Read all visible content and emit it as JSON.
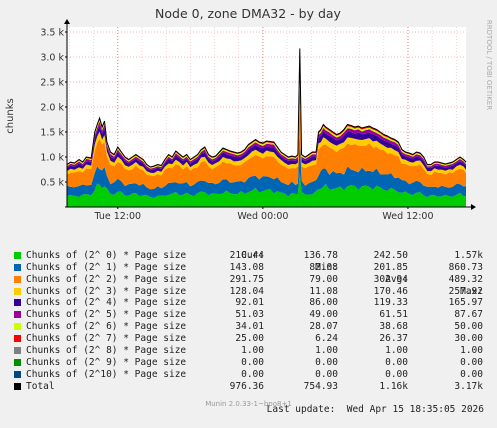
{
  "chart_data": {
    "type": "area",
    "title": "Node 0, zone DMA32 - by day",
    "ylabel": "chunks",
    "side_label": "RRDTOOL / TOBI OETIKER",
    "ylim": [
      0,
      3600
    ],
    "yticks": [
      {
        "value": 500,
        "label": "0.5 k"
      },
      {
        "value": 1000,
        "label": "1.0 k"
      },
      {
        "value": 1500,
        "label": "1.5 k"
      },
      {
        "value": 2000,
        "label": "2.0 k"
      },
      {
        "value": 2500,
        "label": "2.5 k"
      },
      {
        "value": 3000,
        "label": "3.0 k"
      },
      {
        "value": 3500,
        "label": "3.5 k"
      }
    ],
    "xticks": [
      {
        "value": 4.2,
        "label": "Tue 12:00"
      },
      {
        "value": 16.2,
        "label": "Wed 00:00"
      },
      {
        "value": 28.2,
        "label": "Wed 12:00"
      }
    ],
    "xlim": [
      0,
      33
    ],
    "grid": true,
    "total_profile": [
      [
        0.0,
        850
      ],
      [
        0.3,
        900
      ],
      [
        0.6,
        880
      ],
      [
        1.0,
        950
      ],
      [
        1.3,
        900
      ],
      [
        1.6,
        1000
      ],
      [
        2.0,
        980
      ],
      [
        2.3,
        1500
      ],
      [
        2.5,
        1650
      ],
      [
        2.7,
        1780
      ],
      [
        2.9,
        1600
      ],
      [
        3.1,
        1720
      ],
      [
        3.3,
        1300
      ],
      [
        3.6,
        1100
      ],
      [
        3.9,
        1050
      ],
      [
        4.2,
        1200
      ],
      [
        4.5,
        1100
      ],
      [
        4.8,
        1000
      ],
      [
        5.1,
        950
      ],
      [
        5.4,
        1000
      ],
      [
        5.7,
        1050
      ],
      [
        6.0,
        1000
      ],
      [
        6.3,
        950
      ],
      [
        6.6,
        850
      ],
      [
        6.9,
        800
      ],
      [
        7.2,
        820
      ],
      [
        7.5,
        850
      ],
      [
        7.8,
        830
      ],
      [
        8.1,
        950
      ],
      [
        8.4,
        1050
      ],
      [
        8.7,
        1000
      ],
      [
        9.0,
        1120
      ],
      [
        9.3,
        1060
      ],
      [
        9.6,
        1000
      ],
      [
        9.9,
        1050
      ],
      [
        10.2,
        950
      ],
      [
        10.5,
        1000
      ],
      [
        10.8,
        1050
      ],
      [
        11.1,
        1150
      ],
      [
        11.4,
        1200
      ],
      [
        11.7,
        1050
      ],
      [
        12.0,
        1000
      ],
      [
        12.3,
        1020
      ],
      [
        12.6,
        1100
      ],
      [
        12.9,
        1180
      ],
      [
        13.2,
        1150
      ],
      [
        13.5,
        1120
      ],
      [
        13.8,
        1100
      ],
      [
        14.1,
        1080
      ],
      [
        14.4,
        1100
      ],
      [
        14.7,
        1150
      ],
      [
        15.0,
        1250
      ],
      [
        15.3,
        1300
      ],
      [
        15.6,
        1350
      ],
      [
        15.9,
        1300
      ],
      [
        16.2,
        1280
      ],
      [
        16.5,
        1320
      ],
      [
        16.8,
        1310
      ],
      [
        17.1,
        1300
      ],
      [
        17.4,
        1200
      ],
      [
        17.7,
        1100
      ],
      [
        18.0,
        1050
      ],
      [
        18.3,
        1000
      ],
      [
        18.6,
        1020
      ],
      [
        18.9,
        1000
      ],
      [
        19.1,
        1050
      ],
      [
        19.25,
        3170
      ],
      [
        19.4,
        1050
      ],
      [
        19.7,
        1000
      ],
      [
        20.0,
        1050
      ],
      [
        20.3,
        1100
      ],
      [
        20.6,
        1100
      ],
      [
        20.8,
        1500
      ],
      [
        21.0,
        1550
      ],
      [
        21.2,
        1650
      ],
      [
        21.4,
        1600
      ],
      [
        21.7,
        1550
      ],
      [
        22.0,
        1500
      ],
      [
        22.3,
        1450
      ],
      [
        22.6,
        1480
      ],
      [
        22.9,
        1550
      ],
      [
        23.2,
        1650
      ],
      [
        23.5,
        1630
      ],
      [
        23.8,
        1600
      ],
      [
        24.1,
        1620
      ],
      [
        24.4,
        1580
      ],
      [
        24.7,
        1600
      ],
      [
        25.0,
        1620
      ],
      [
        25.3,
        1580
      ],
      [
        25.6,
        1550
      ],
      [
        25.9,
        1500
      ],
      [
        26.2,
        1450
      ],
      [
        26.5,
        1420
      ],
      [
        26.8,
        1380
      ],
      [
        27.1,
        1350
      ],
      [
        27.4,
        1300
      ],
      [
        27.7,
        1150
      ],
      [
        28.0,
        1100
      ],
      [
        28.3,
        1080
      ],
      [
        28.6,
        1050
      ],
      [
        28.9,
        1100
      ],
      [
        29.2,
        1080
      ],
      [
        29.5,
        1000
      ],
      [
        29.8,
        850
      ],
      [
        30.1,
        850
      ],
      [
        30.4,
        900
      ],
      [
        30.7,
        900
      ],
      [
        31.0,
        880
      ],
      [
        31.3,
        860
      ],
      [
        31.6,
        880
      ],
      [
        31.9,
        900
      ],
      [
        32.2,
        950
      ],
      [
        32.5,
        1000
      ],
      [
        32.8,
        950
      ],
      [
        33.0,
        900
      ]
    ],
    "series": [
      {
        "name": "Chunks of (2^ 0) * Page size",
        "color": "#00cc00",
        "cur": "210.44",
        "min": "136.78",
        "avg": "242.50",
        "max": "1.57k",
        "share": 0.249
      },
      {
        "name": "Chunks of (2^ 1) * Page size",
        "color": "#0066b3",
        "cur": "143.08",
        "min": "82.08",
        "avg": "201.85",
        "max": "860.73",
        "share": 0.207
      },
      {
        "name": "Chunks of (2^ 2) * Page size",
        "color": "#ff8000",
        "cur": "291.75",
        "min": "79.00",
        "avg": "302.94",
        "max": "489.32",
        "share": 0.311
      },
      {
        "name": "Chunks of (2^ 3) * Page size",
        "color": "#ffcc00",
        "cur": "128.04",
        "min": "11.08",
        "avg": "170.46",
        "max": "257.92",
        "share": 0.075
      },
      {
        "name": "Chunks of (2^ 4) * Page size",
        "color": "#330099",
        "cur": "92.01",
        "min": "86.00",
        "avg": "119.33",
        "max": "165.97",
        "share": 0.073
      },
      {
        "name": "Chunks of (2^ 5) * Page size",
        "color": "#990099",
        "cur": "51.03",
        "min": "49.00",
        "avg": "61.51",
        "max": "87.67",
        "share": 0.04
      },
      {
        "name": "Chunks of (2^ 6) * Page size",
        "color": "#ccff00",
        "cur": "34.01",
        "min": "28.07",
        "avg": "38.68",
        "max": "50.00",
        "share": 0.022
      },
      {
        "name": "Chunks of (2^ 7) * Page size",
        "color": "#ff0000",
        "cur": "25.00",
        "min": "6.24",
        "avg": "26.37",
        "max": "30.00",
        "share": 0.015
      },
      {
        "name": "Chunks of (2^ 8) * Page size",
        "color": "#808080",
        "cur": "1.00",
        "min": "1.00",
        "avg": "1.00",
        "max": "1.00",
        "share": 0.004
      },
      {
        "name": "Chunks of (2^ 9) * Page size",
        "color": "#008f00",
        "cur": "0.00",
        "min": "0.00",
        "avg": "0.00",
        "max": "0.00",
        "share": 0.0
      },
      {
        "name": "Chunks of (2^10) * Page size",
        "color": "#00487d",
        "cur": "0.00",
        "min": "0.00",
        "avg": "0.00",
        "max": "0.00",
        "share": 0.0
      },
      {
        "name": "Total",
        "color": "#000000",
        "cur": "976.36",
        "min": "754.93",
        "avg": "1.16k",
        "max": "3.17k",
        "is_total": true
      }
    ]
  },
  "legend_headers": {
    "cur": "Cur:",
    "min": "Min:",
    "avg": "Avg:",
    "max": "Max:"
  },
  "last_update": "Last update:  Wed Apr 15 18:35:05 2026",
  "footer": "Munin 2.0.33-1~bpo8+1"
}
